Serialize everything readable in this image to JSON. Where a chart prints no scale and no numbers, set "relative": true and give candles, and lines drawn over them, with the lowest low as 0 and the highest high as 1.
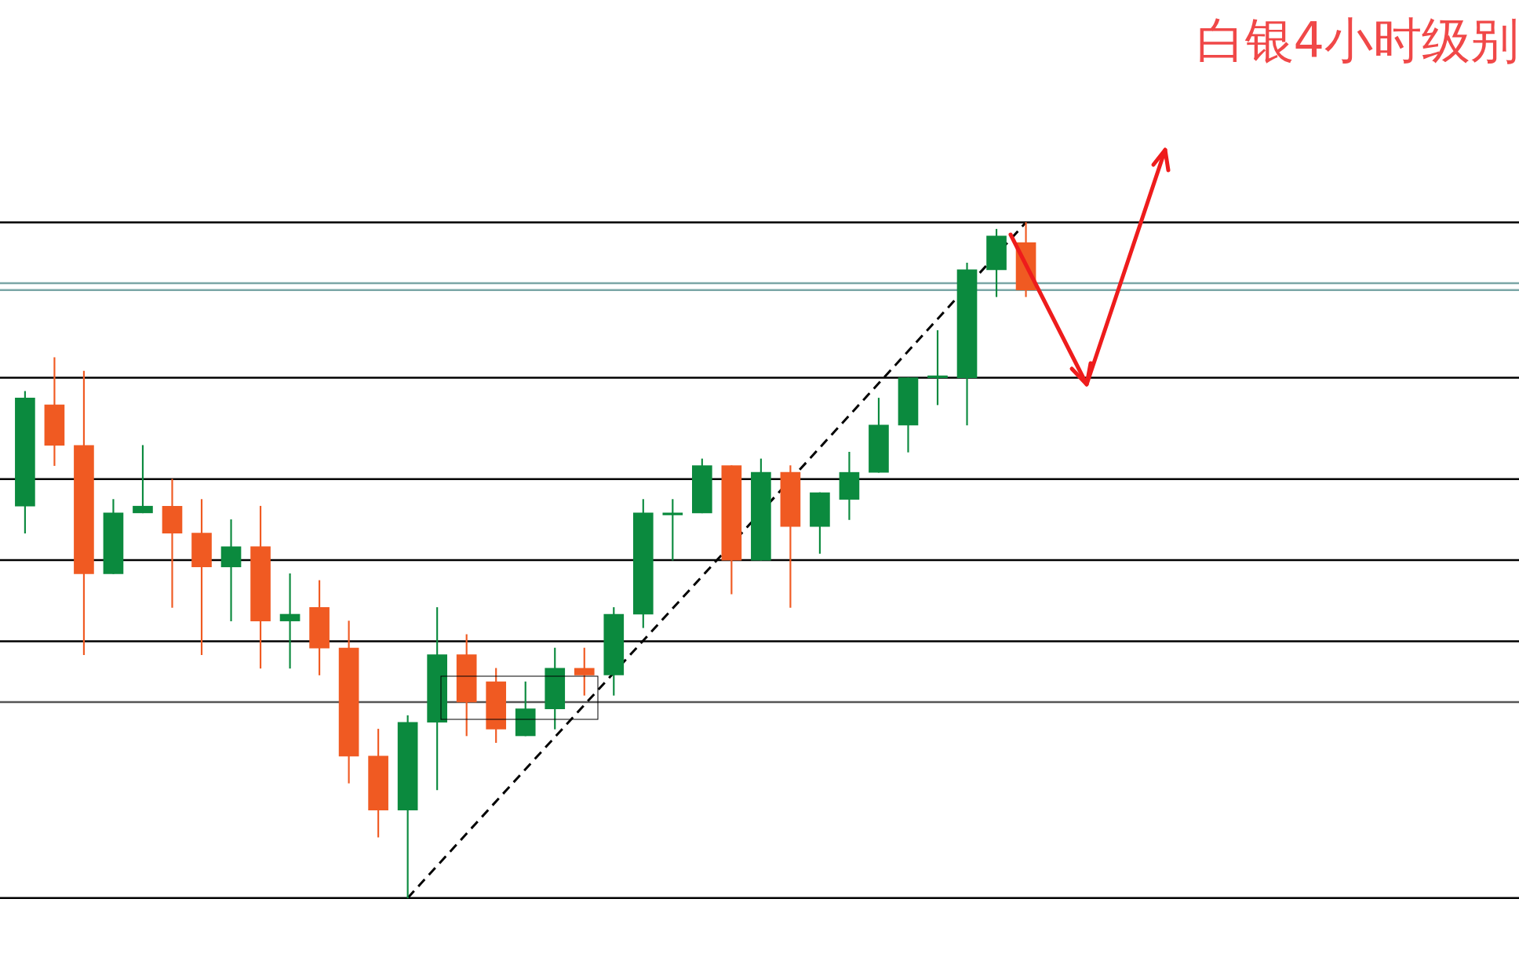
{
  "chart_data": {
    "type": "candlestick",
    "title": "白银4小时级别",
    "relative": true,
    "marker": "none",
    "categories": [
      null,
      null,
      null,
      null,
      null,
      null,
      null,
      null,
      null,
      null,
      null,
      null,
      null,
      null,
      null,
      null,
      null,
      null,
      null,
      null,
      null,
      null,
      null,
      null,
      null,
      null,
      null,
      null,
      null,
      null,
      null,
      null,
      null,
      null,
      null
    ],
    "ohlc": [
      [
        0.58,
        0.75,
        0.54,
        0.74
      ],
      [
        0.73,
        0.8,
        0.64,
        0.67
      ],
      [
        0.67,
        0.78,
        0.36,
        0.48
      ],
      [
        0.48,
        0.59,
        0.48,
        0.57
      ],
      [
        0.57,
        0.67,
        0.57,
        0.58
      ],
      [
        0.58,
        0.62,
        0.43,
        0.54
      ],
      [
        0.54,
        0.59,
        0.36,
        0.49
      ],
      [
        0.49,
        0.56,
        0.41,
        0.52
      ],
      [
        0.52,
        0.58,
        0.34,
        0.41
      ],
      [
        0.41,
        0.48,
        0.34,
        0.42
      ],
      [
        0.43,
        0.47,
        0.33,
        0.37
      ],
      [
        0.37,
        0.41,
        0.17,
        0.21
      ],
      [
        0.21,
        0.25,
        0.09,
        0.13
      ],
      [
        0.13,
        0.27,
        0,
        0.26
      ],
      [
        0.26,
        0.43,
        0.16,
        0.36
      ],
      [
        0.36,
        0.39,
        0.24,
        0.29
      ],
      [
        0.32,
        0.34,
        0.23,
        0.25
      ],
      [
        0.24,
        0.32,
        0.24,
        0.28
      ],
      [
        0.28,
        0.37,
        0.25,
        0.34
      ],
      [
        0.34,
        0.37,
        0.3,
        0.33
      ],
      [
        0.33,
        0.43,
        0.3,
        0.42
      ],
      [
        0.42,
        0.59,
        0.4,
        0.57
      ],
      [
        0.567,
        0.59,
        0.5,
        0.57
      ],
      [
        0.57,
        0.65,
        0.57,
        0.64
      ],
      [
        0.64,
        0.64,
        0.45,
        0.5
      ],
      [
        0.5,
        0.65,
        0.5,
        0.63
      ],
      [
        0.63,
        0.64,
        0.43,
        0.55
      ],
      [
        0.55,
        0.6,
        0.51,
        0.6
      ],
      [
        0.59,
        0.66,
        0.56,
        0.63
      ],
      [
        0.63,
        0.74,
        0.63,
        0.7
      ],
      [
        0.7,
        0.77,
        0.66,
        0.77
      ],
      [
        0.77,
        0.84,
        0.73,
        0.773
      ],
      [
        0.77,
        0.94,
        0.7,
        0.93
      ],
      [
        0.93,
        0.99,
        0.89,
        0.98
      ],
      [
        0.97,
        1,
        0.89,
        0.9
      ]
    ],
    "colors": [
      "#0b8a3e",
      "#f05a22",
      "#f05a22",
      "#0b8a3e",
      "#0b8a3e",
      "#f05a22",
      "#f05a22",
      "#0b8a3e",
      "#f05a22",
      "#0b8a3e",
      "#f05a22",
      "#f05a22",
      "#f05a22",
      "#0b8a3e",
      "#0b8a3e",
      "#f05a22",
      "#f05a22",
      "#0b8a3e",
      "#0b8a3e",
      "#f05a22",
      "#0b8a3e",
      "#0b8a3e",
      "#0b8a3e",
      "#0b8a3e",
      "#f05a22",
      "#0b8a3e",
      "#f05a22",
      "#0b8a3e",
      "#0b8a3e",
      "#0b8a3e",
      "#0b8a3e",
      "#0b8a3e",
      "#0b8a3e",
      "#0b8a3e",
      "#f05a22"
    ],
    "series": [
      {
        "type": "line",
        "values": [
          null,
          null,
          null,
          null,
          null,
          null,
          null,
          null,
          null,
          null,
          null,
          null,
          null,
          0,
          null,
          null,
          null,
          null,
          null,
          null,
          null,
          null,
          null,
          null,
          null,
          null,
          null,
          null,
          null,
          null,
          null,
          null,
          null,
          null,
          1
        ],
        "color": "#000000",
        "line_style": "dashed"
      }
    ],
    "ref_lines": [
      {
        "axis": "y",
        "value": 1,
        "color": "#000000"
      },
      {
        "axis": "y",
        "value": 0.91,
        "color": "#7aa6a6"
      },
      {
        "axis": "y",
        "value": 0.9,
        "color": "#7aa6a6"
      },
      {
        "axis": "y",
        "value": 0.77,
        "color": "#000000"
      },
      {
        "axis": "y",
        "value": 0.62,
        "color": "#000000"
      },
      {
        "axis": "y",
        "value": 0.5,
        "color": "#000000"
      },
      {
        "axis": "y",
        "value": 0.38,
        "color": "#000000"
      },
      {
        "axis": "y",
        "value": 0.29,
        "color": "#555555"
      },
      {
        "axis": "y",
        "value": 0,
        "color": "#000000"
      }
    ]
  }
}
